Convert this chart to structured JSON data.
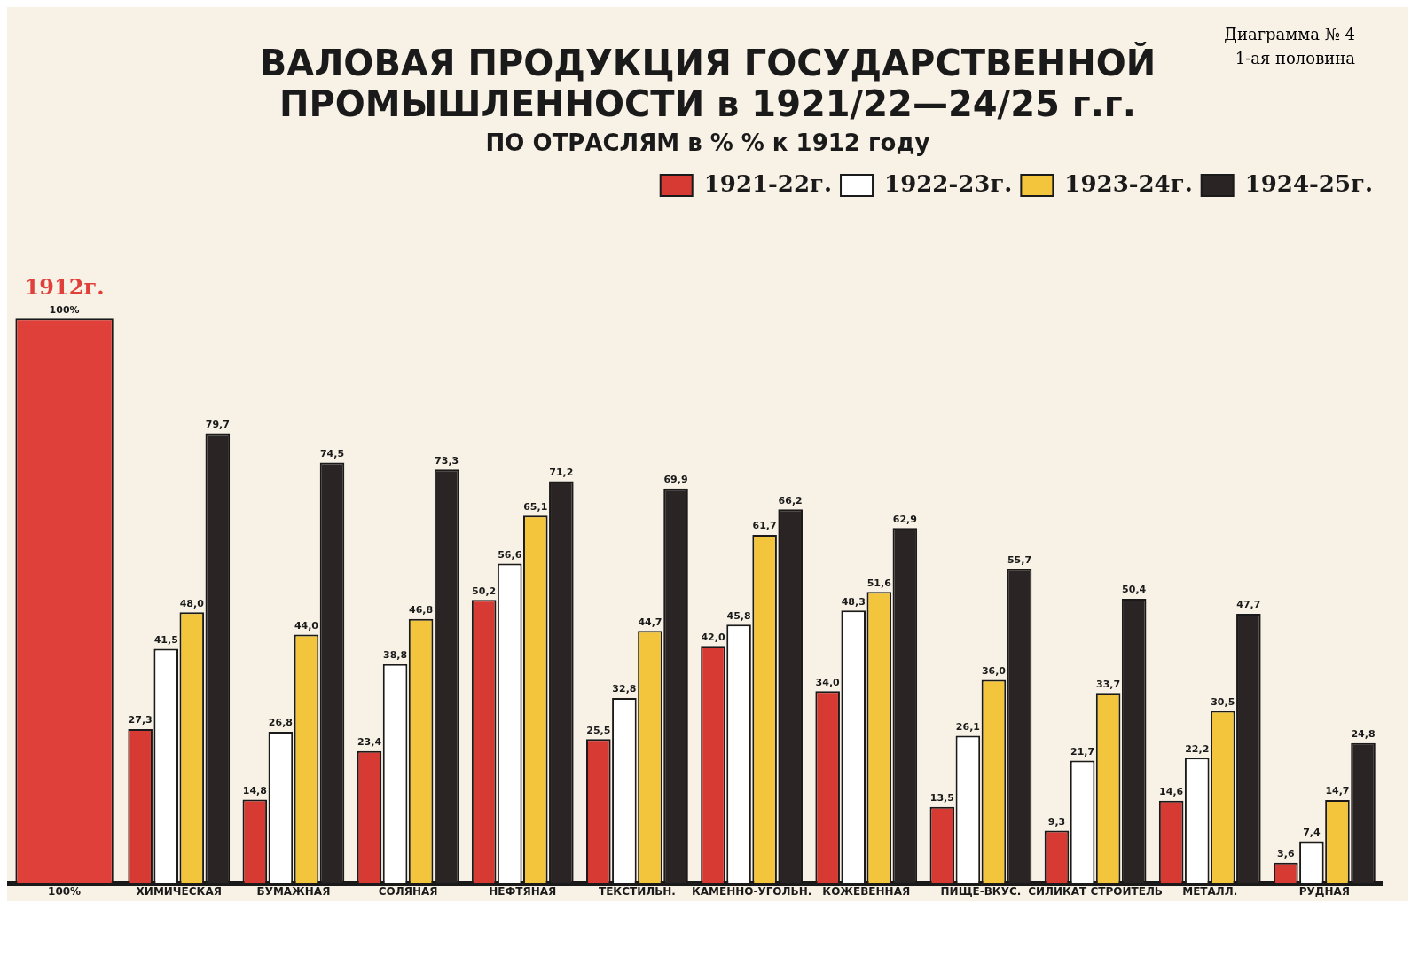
{
  "chart_data": {
    "type": "bar",
    "title": "ВАЛОВАЯ ПРОДУКЦИЯ ГОСУДАРСТВЕННОЙ ПРОМЫШЛЕННОСТИ в 1921/22—24/25 г.г.",
    "subtitle": "ПО ОТРАСЛЯМ в % % к 1912 году",
    "categories": [
      "100%",
      "ХИМИЧЕСКАЯ",
      "БУМАЖНАЯ",
      "СОЛЯНАЯ",
      "НЕФТЯНАЯ",
      "ТЕКСТИЛЬН.",
      "КАМЕННО-УГОЛЬН.",
      "КОЖЕВЕННАЯ",
      "ПИЩЕ-ВКУС.",
      "СИЛИКАТ СТРОИТЕЛЬ",
      "МЕТАЛЛ.",
      "РУДНАЯ"
    ],
    "series": [
      {
        "color": "#e0403a",
        "values": [
          100,
          null,
          null,
          null,
          null,
          null,
          null,
          null,
          null,
          null,
          null,
          null
        ],
        "value_labels": [
          "100%",
          null,
          null,
          null,
          null,
          null,
          null,
          null,
          null,
          null,
          null,
          null
        ]
      },
      {
        "name": "1921-22г.",
        "color": "#d63a33",
        "values": [
          null,
          27.3,
          14.8,
          23.4,
          50.2,
          25.5,
          42.0,
          34.0,
          13.5,
          9.3,
          14.6,
          3.6
        ],
        "value_labels": [
          null,
          "27,3",
          "14,8",
          "23,4",
          "50,2",
          "25,5",
          "42,0",
          "34,0",
          "13,5",
          "9,3",
          "14,6",
          "3,6"
        ]
      },
      {
        "name": "1922-23г.",
        "color": "#ffffff",
        "values": [
          null,
          41.5,
          26.8,
          38.8,
          56.6,
          32.8,
          45.8,
          48.3,
          26.1,
          21.7,
          22.2,
          7.4
        ],
        "value_labels": [
          null,
          "41,5",
          "26,8",
          "38,8",
          "56,6",
          "32,8",
          "45,8",
          "48,3",
          "26,1",
          "21,7",
          "22,2",
          "7,4"
        ]
      },
      {
        "name": "1923-24г.",
        "color": "#f2c53d",
        "values": [
          null,
          48.0,
          44.0,
          46.8,
          65.1,
          44.7,
          61.7,
          51.6,
          36.0,
          33.7,
          30.5,
          14.7
        ],
        "value_labels": [
          null,
          "48,0",
          "44,0",
          "46,8",
          "65,1",
          "44,7",
          "61,7",
          "51,6",
          "36,0",
          "33,7",
          "30,5",
          "14,7"
        ]
      },
      {
        "name": "1924-25г.",
        "color": "#2a2424",
        "values": [
          null,
          79.7,
          74.5,
          73.3,
          71.2,
          69.9,
          66.2,
          62.9,
          55.7,
          50.4,
          47.7,
          24.8
        ],
        "value_labels": [
          null,
          "79,7",
          "74,5",
          "73,3",
          "71,2",
          "69,9",
          "66,2",
          "62,9",
          "55,7",
          "50,4",
          "47,7",
          "24,8"
        ]
      }
    ],
    "annotations": [
      "Диаграмма № 4",
      {
        "text": "1912г.",
        "x": "100%",
        "y": 100
      },
      "1-ая половина"
    ],
    "legend": "top right",
    "grid": false
  }
}
